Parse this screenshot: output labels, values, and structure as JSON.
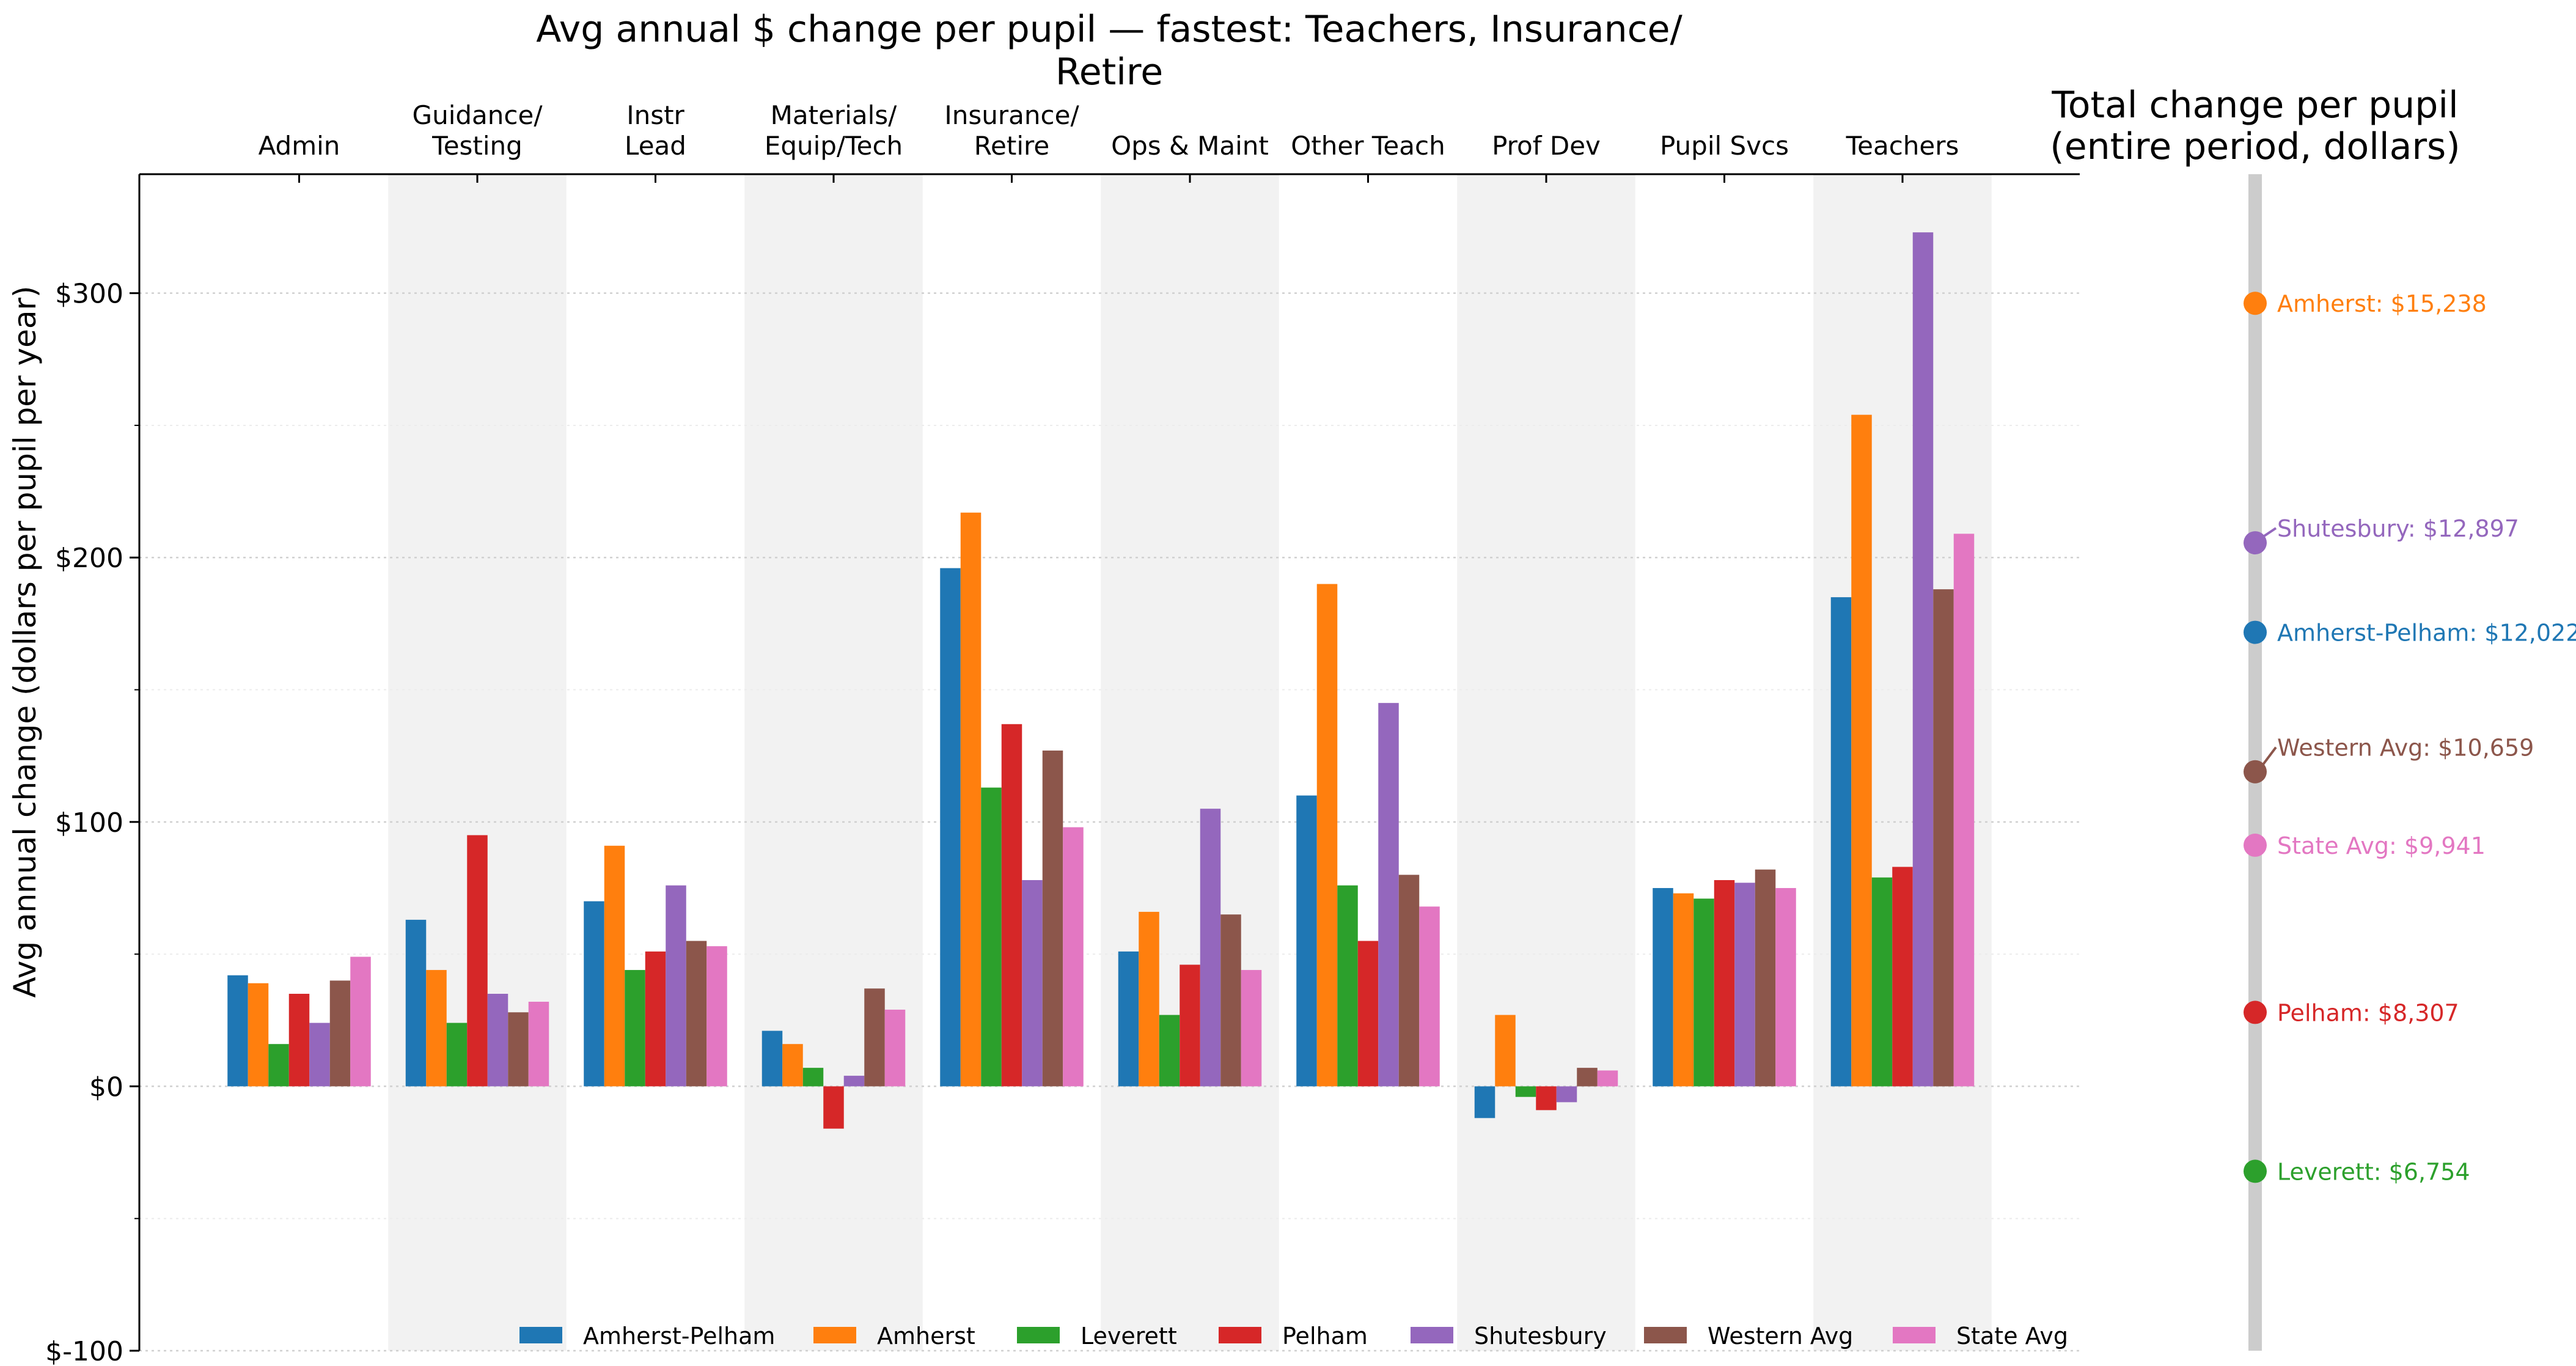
{
  "chart_data": [
    {
      "type": "bar",
      "title": "Avg annual $ change per pupil — fastest: Teachers, Insurance/ Retire",
      "title_lines": [
        "Avg annual $ change per pupil — fastest: Teachers, Insurance/",
        "Retire"
      ],
      "xlabel": "",
      "ylabel": "Avg annual change (dollars per pupil per year)",
      "x_axis_position": "top",
      "ylim": [
        -100,
        345
      ],
      "yticks": [
        -100,
        0,
        100,
        200,
        300
      ],
      "ytick_labels": [
        "$-100",
        "$0",
        "$100",
        "$200",
        "$300"
      ],
      "grid": true,
      "legend_position": "bottom",
      "categories": [
        "Admin",
        "Guidance/ Testing",
        "Instr Lead",
        "Materials/ Equip/Tech",
        "Insurance/ Retire",
        "Ops & Maint",
        "Other Teach",
        "Prof Dev",
        "Pupil Svcs",
        "Teachers"
      ],
      "category_lines": [
        [
          "Admin"
        ],
        [
          "Guidance/",
          "Testing"
        ],
        [
          "Instr",
          "Lead"
        ],
        [
          "Materials/",
          "Equip/Tech"
        ],
        [
          "Insurance/",
          "Retire"
        ],
        [
          "Ops & Maint"
        ],
        [
          "Other Teach"
        ],
        [
          "Prof Dev"
        ],
        [
          "Pupil Svcs"
        ],
        [
          "Teachers"
        ]
      ],
      "series": [
        {
          "name": "Amherst-Pelham",
          "color": "#1f77b4",
          "values": [
            42,
            63,
            70,
            21,
            196,
            51,
            110,
            -12,
            75,
            185
          ]
        },
        {
          "name": "Amherst",
          "color": "#ff7f0e",
          "values": [
            39,
            44,
            91,
            16,
            217,
            66,
            190,
            27,
            73,
            254
          ]
        },
        {
          "name": "Leverett",
          "color": "#2ca02c",
          "values": [
            16,
            24,
            44,
            7,
            113,
            27,
            76,
            -4,
            71,
            79
          ]
        },
        {
          "name": "Pelham",
          "color": "#d62728",
          "values": [
            35,
            95,
            51,
            -16,
            137,
            46,
            55,
            -9,
            78,
            83
          ]
        },
        {
          "name": "Shutesbury",
          "color": "#9467bd",
          "values": [
            24,
            35,
            76,
            4,
            78,
            105,
            145,
            -6,
            77,
            323
          ]
        },
        {
          "name": "Western Avg",
          "color": "#8c564b",
          "values": [
            40,
            28,
            55,
            37,
            127,
            65,
            80,
            7,
            82,
            188
          ]
        },
        {
          "name": "State Avg",
          "color": "#e377c2",
          "values": [
            49,
            32,
            53,
            29,
            98,
            44,
            68,
            6,
            75,
            209
          ]
        }
      ]
    },
    {
      "type": "scatter",
      "title": "Total change per pupil (entire period, dollars)",
      "title_lines": [
        "Total change per pupil",
        "(entire period, dollars)"
      ],
      "ylim": [
        5000,
        16500
      ],
      "points": [
        {
          "name": "Amherst",
          "value": 15238,
          "label": "Amherst: $15,238",
          "color": "#ff7f0e"
        },
        {
          "name": "Shutesbury",
          "value": 12897,
          "label": "Shutesbury: $12,897",
          "color": "#9467bd"
        },
        {
          "name": "Amherst-Pelham",
          "value": 12022,
          "label": "Amherst-Pelham: $12,022",
          "color": "#1f77b4"
        },
        {
          "name": "Western Avg",
          "value": 10659,
          "label": "Western Avg: $10,659",
          "color": "#8c564b"
        },
        {
          "name": "State Avg",
          "value": 9941,
          "label": "State Avg: $9,941",
          "color": "#e377c2"
        },
        {
          "name": "Pelham",
          "value": 8307,
          "label": "Pelham: $8,307",
          "color": "#d62728"
        },
        {
          "name": "Leverett",
          "value": 6754,
          "label": "Leverett: $6,754",
          "color": "#2ca02c"
        }
      ]
    }
  ]
}
